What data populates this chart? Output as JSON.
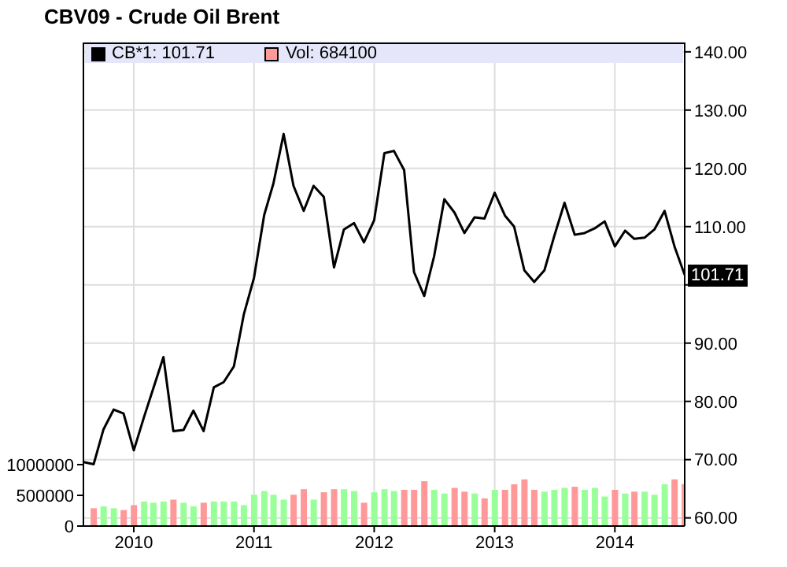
{
  "chart_data": {
    "type": "line",
    "title": "CBV09 - Crude Oil Brent",
    "x": [
      "2009-08",
      "2009-09",
      "2009-10",
      "2009-11",
      "2009-12",
      "2010-01",
      "2010-02",
      "2010-03",
      "2010-04",
      "2010-05",
      "2010-06",
      "2010-07",
      "2010-08",
      "2010-09",
      "2010-10",
      "2010-11",
      "2010-12",
      "2011-01",
      "2011-02",
      "2011-03",
      "2011-04",
      "2011-05",
      "2011-06",
      "2011-07",
      "2011-08",
      "2011-09",
      "2011-10",
      "2011-11",
      "2011-12",
      "2012-01",
      "2012-02",
      "2012-03",
      "2012-04",
      "2012-05",
      "2012-06",
      "2012-07",
      "2012-08",
      "2012-09",
      "2012-10",
      "2012-11",
      "2012-12",
      "2013-01",
      "2013-02",
      "2013-03",
      "2013-04",
      "2013-05",
      "2013-06",
      "2013-07",
      "2013-08",
      "2013-09",
      "2013-10",
      "2013-11",
      "2013-12",
      "2014-01",
      "2014-02",
      "2014-03",
      "2014-04",
      "2014-05",
      "2014-06",
      "2014-07",
      "2014-08"
    ],
    "series": [
      {
        "name": "CB*1: 101.71",
        "axis": "y2",
        "color": "#000000",
        "values": [
          69.6,
          69.2,
          75.2,
          78.6,
          77.9,
          71.6,
          77.3,
          82.2,
          87.6,
          74.9,
          75.1,
          78.4,
          74.9,
          82.4,
          83.3,
          86.0,
          94.9,
          101.2,
          112.0,
          117.4,
          125.9,
          117.0,
          112.7,
          117.0,
          115.1,
          103.0,
          109.5,
          110.6,
          107.3,
          111.1,
          122.6,
          123.0,
          119.7,
          102.2,
          98.1,
          104.9,
          114.7,
          112.4,
          108.9,
          111.6,
          111.4,
          115.8,
          111.9,
          110.0,
          102.5,
          100.5,
          102.5,
          108.4,
          114.1,
          108.6,
          108.9,
          109.7,
          110.9,
          106.6,
          109.3,
          107.9,
          108.1,
          109.5,
          112.7,
          106.6,
          101.71
        ]
      },
      {
        "name": "Vol: 684100",
        "type": "bar",
        "axis": "y",
        "color": "#ff9999",
        "values": [
          null,
          290000,
          320000,
          290000,
          260000,
          340000,
          400000,
          380000,
          400000,
          430000,
          380000,
          320000,
          380000,
          400000,
          400000,
          400000,
          340000,
          510000,
          570000,
          510000,
          430000,
          510000,
          600000,
          430000,
          550000,
          600000,
          600000,
          570000,
          380000,
          550000,
          600000,
          570000,
          590000,
          590000,
          730000,
          590000,
          530000,
          620000,
          560000,
          530000,
          450000,
          590000,
          590000,
          680000,
          760000,
          590000,
          560000,
          590000,
          620000,
          640000,
          590000,
          620000,
          480000,
          590000,
          530000,
          560000,
          560000,
          510000,
          680000,
          760000,
          684100
        ],
        "colors": [
          null,
          "#ff9999",
          "#99ff99",
          "#99ff99",
          "#ff9999",
          "#ff9999",
          "#99ff99",
          "#99ff99",
          "#99ff99",
          "#ff9999",
          "#99ff99",
          "#99ff99",
          "#ff9999",
          "#99ff99",
          "#99ff99",
          "#99ff99",
          "#99ff99",
          "#99ff99",
          "#99ff99",
          "#99ff99",
          "#99ff99",
          "#ff9999",
          "#ff9999",
          "#99ff99",
          "#ff9999",
          "#ff9999",
          "#99ff99",
          "#99ff99",
          "#ff9999",
          "#99ff99",
          "#99ff99",
          "#99ff99",
          "#ff9999",
          "#ff9999",
          "#ff9999",
          "#99ff99",
          "#99ff99",
          "#ff9999",
          "#ff9999",
          "#99ff99",
          "#ff9999",
          "#99ff99",
          "#ff9999",
          "#ff9999",
          "#ff9999",
          "#ff9999",
          "#99ff99",
          "#99ff99",
          "#99ff99",
          "#ff9999",
          "#99ff99",
          "#99ff99",
          "#99ff99",
          "#ff9999",
          "#99ff99",
          "#ff9999",
          "#99ff99",
          "#99ff99",
          "#99ff99",
          "#ff9999",
          "#ff9999"
        ]
      }
    ],
    "xlim": [
      "2009-08",
      "2014-08"
    ],
    "xticks": [
      {
        "value": "2010",
        "label": "2010"
      },
      {
        "value": "2011",
        "label": "2011"
      },
      {
        "value": "2012",
        "label": "2012"
      },
      {
        "value": "2013",
        "label": "2013"
      },
      {
        "value": "2014",
        "label": "2014"
      }
    ],
    "ylim": [
      0,
      7870000
    ],
    "yticks": [
      0,
      500000,
      1000000
    ],
    "y2lim": [
      58.6,
      141.6
    ],
    "y2ticks": [
      {
        "value": 60,
        "label": "60.00"
      },
      {
        "value": 70,
        "label": "70.00"
      },
      {
        "value": 80,
        "label": "80.00"
      },
      {
        "value": 90,
        "label": "90.00"
      },
      {
        "value": 100,
        "label": null
      },
      {
        "value": 110,
        "label": "110.00"
      },
      {
        "value": 120,
        "label": "120.00"
      },
      {
        "value": 130,
        "label": "130.00"
      },
      {
        "value": 140,
        "label": "140.00"
      }
    ],
    "annotations": [
      "101.71"
    ],
    "grid": true,
    "legend": "top left",
    "marker": "none",
    "line_style": "solid"
  }
}
